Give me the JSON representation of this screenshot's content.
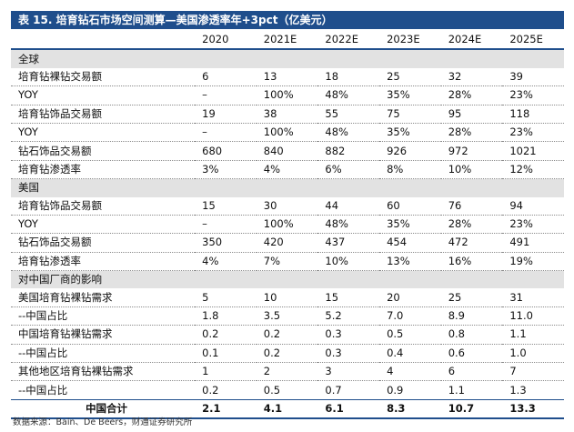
{
  "title": "表 15. 培育钻石市场空间测算—美国渗透率年+3pct（亿美元）",
  "years": [
    "2020",
    "2021E",
    "2022E",
    "2023E",
    "2024E",
    "2025E"
  ],
  "rows": [
    {
      "type": "section",
      "label": "全球"
    },
    {
      "type": "data",
      "label": "培育钻裸钻交易额",
      "values": [
        "6",
        "13",
        "18",
        "25",
        "32",
        "39"
      ]
    },
    {
      "type": "data",
      "label": "YOY",
      "values": [
        "–",
        "100%",
        "48%",
        "35%",
        "28%",
        "23%"
      ]
    },
    {
      "type": "data",
      "label": "培育钻饰品交易额",
      "values": [
        "19",
        "38",
        "55",
        "75",
        "95",
        "118"
      ]
    },
    {
      "type": "data",
      "label": "YOY",
      "values": [
        "–",
        "100%",
        "48%",
        "35%",
        "28%",
        "23%"
      ]
    },
    {
      "type": "data",
      "label": "钻石饰品交易额",
      "values": [
        "680",
        "840",
        "882",
        "926",
        "972",
        "1021"
      ]
    },
    {
      "type": "data",
      "label": "培育钻渗透率",
      "values": [
        "3%",
        "4%",
        "6%",
        "8%",
        "10%",
        "12%"
      ]
    },
    {
      "type": "section",
      "label": "美国"
    },
    {
      "type": "data",
      "label": "培育钻饰品交易额",
      "values": [
        "15",
        "30",
        "44",
        "60",
        "76",
        "94"
      ]
    },
    {
      "type": "data",
      "label": "YOY",
      "values": [
        "–",
        "100%",
        "48%",
        "35%",
        "28%",
        "23%"
      ]
    },
    {
      "type": "data",
      "label": "钻石饰品交易额",
      "values": [
        "350",
        "420",
        "437",
        "454",
        "472",
        "491"
      ]
    },
    {
      "type": "data",
      "label": "培育钻渗透率",
      "values": [
        "4%",
        "7%",
        "10%",
        "13%",
        "16%",
        "19%"
      ]
    },
    {
      "type": "section",
      "label": "对中国厂商的影响"
    },
    {
      "type": "data",
      "label": "美国培育钻裸钻需求",
      "values": [
        "5",
        "10",
        "15",
        "20",
        "25",
        "31"
      ]
    },
    {
      "type": "data",
      "label": "--中国占比",
      "values": [
        "1.8",
        "3.5",
        "5.2",
        "7.0",
        "8.9",
        "11.0"
      ]
    },
    {
      "type": "data",
      "label": "中国培育钻裸钻需求",
      "values": [
        "0.2",
        "0.2",
        "0.3",
        "0.5",
        "0.8",
        "1.1"
      ]
    },
    {
      "type": "data",
      "label": "--中国占比",
      "values": [
        "0.1",
        "0.2",
        "0.3",
        "0.4",
        "0.6",
        "1.0"
      ]
    },
    {
      "type": "data",
      "label": "其他地区培育钻裸钻需求",
      "values": [
        "1",
        "2",
        "3",
        "4",
        "6",
        "7"
      ]
    },
    {
      "type": "data",
      "label": "--中国占比",
      "values": [
        "0.2",
        "0.5",
        "0.7",
        "0.9",
        "1.1",
        "1.3"
      ]
    },
    {
      "type": "total",
      "label": "中国合计",
      "values": [
        "2.1",
        "4.1",
        "6.1",
        "8.3",
        "10.7",
        "13.3"
      ]
    }
  ],
  "source": "数据来源：Bain、De Beers，财通证券研究所"
}
